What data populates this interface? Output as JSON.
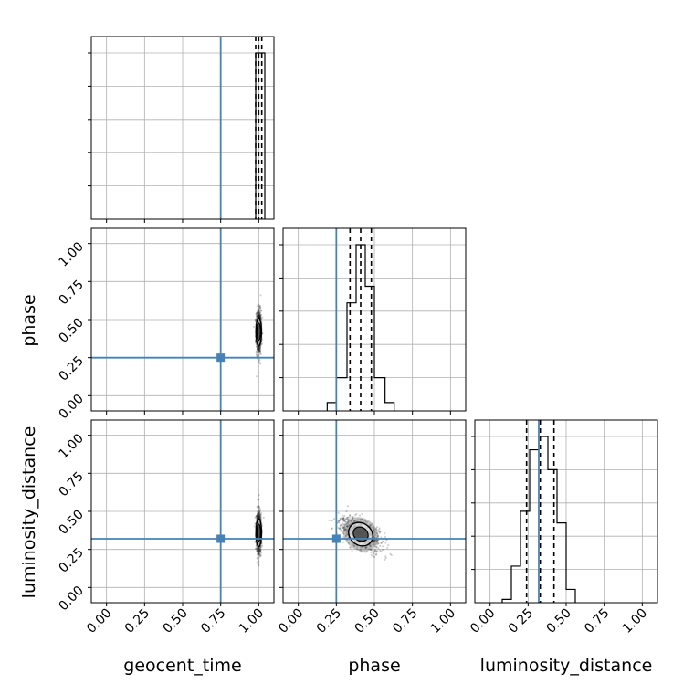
{
  "chart_data": {
    "type": "corner",
    "parameters": [
      "geocent_time",
      "phase",
      "luminosity_distance"
    ],
    "axis_range": [
      -0.1,
      1.1
    ],
    "ticks": [
      0.0,
      0.25,
      0.5,
      0.75,
      1.0
    ],
    "tick_labels": [
      "0.00",
      "0.25",
      "0.50",
      "0.75",
      "1.00"
    ],
    "grid": true,
    "colors": {
      "truth": "#4682b4",
      "hist": "#000000",
      "grid": "#b0b0b0"
    },
    "truths": {
      "geocent_time": 0.75,
      "phase": 0.25,
      "luminosity_distance": 0.32
    },
    "marginals": [
      {
        "parameter": "geocent_time",
        "bins": [
          {
            "x0": 0.98,
            "x1": 1.04,
            "h": 1.0
          }
        ],
        "quantiles": [
          0.98,
          1.0,
          1.02
        ]
      },
      {
        "parameter": "phase",
        "bins": [
          {
            "x0": 0.19,
            "x1": 0.25,
            "h": 0.05
          },
          {
            "x0": 0.25,
            "x1": 0.32,
            "h": 0.2
          },
          {
            "x0": 0.32,
            "x1": 0.38,
            "h": 0.65
          },
          {
            "x0": 0.38,
            "x1": 0.44,
            "h": 1.0
          },
          {
            "x0": 0.44,
            "x1": 0.5,
            "h": 0.75
          },
          {
            "x0": 0.5,
            "x1": 0.57,
            "h": 0.2
          },
          {
            "x0": 0.57,
            "x1": 0.63,
            "h": 0.05
          }
        ],
        "quantiles": [
          0.34,
          0.41,
          0.48
        ]
      },
      {
        "parameter": "luminosity_distance",
        "bins": [
          {
            "x0": 0.08,
            "x1": 0.14,
            "h": 0.02
          },
          {
            "x0": 0.14,
            "x1": 0.2,
            "h": 0.22
          },
          {
            "x0": 0.2,
            "x1": 0.26,
            "h": 0.55
          },
          {
            "x0": 0.26,
            "x1": 0.32,
            "h": 0.92
          },
          {
            "x0": 0.32,
            "x1": 0.38,
            "h": 1.0
          },
          {
            "x0": 0.38,
            "x1": 0.44,
            "h": 0.8
          },
          {
            "x0": 0.44,
            "x1": 0.5,
            "h": 0.48
          },
          {
            "x0": 0.5,
            "x1": 0.56,
            "h": 0.08
          }
        ],
        "quantiles": [
          0.24,
          0.33,
          0.42
        ]
      }
    ],
    "joint": [
      {
        "x": "geocent_time",
        "y": "phase",
        "center": [
          1.0,
          0.42
        ],
        "spread": [
          0.008,
          0.07
        ],
        "corr": 0.0,
        "truth": [
          0.75,
          0.25
        ]
      },
      {
        "x": "geocent_time",
        "y": "luminosity_distance",
        "center": [
          1.0,
          0.36
        ],
        "spread": [
          0.008,
          0.07
        ],
        "corr": 0.0,
        "truth": [
          0.75,
          0.32
        ]
      },
      {
        "x": "phase",
        "y": "luminosity_distance",
        "center": [
          0.41,
          0.35
        ],
        "spread": [
          0.065,
          0.055
        ],
        "corr": -0.55,
        "truth": [
          0.25,
          0.32
        ]
      }
    ]
  }
}
